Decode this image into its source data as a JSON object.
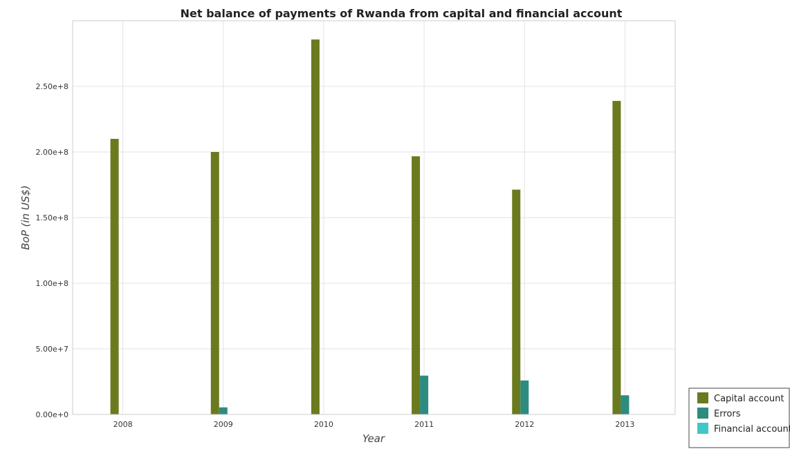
{
  "chart_data": {
    "type": "bar",
    "title": "Net balance of payments of Rwanda from capital and financial account",
    "xlabel": "Year",
    "ylabel": "BoP (in US$)",
    "categories": [
      "2008",
      "2009",
      "2010",
      "2011",
      "2012",
      "2013"
    ],
    "ylim": [
      0,
      300000000
    ],
    "yticks": [
      0,
      50000000,
      100000000,
      150000000,
      200000000,
      250000000
    ],
    "ytick_labels": [
      "0.00e+0",
      "5.00e+7",
      "1.00e+8",
      "1.50e+8",
      "2.00e+8",
      "2.50e+8"
    ],
    "grid": true,
    "legend_position": "bottom-right",
    "series": [
      {
        "name": "Capital account",
        "color": "#6b7a1f",
        "values": [
          210000000,
          200000000,
          285700000,
          196700000,
          171300000,
          238900000
        ]
      },
      {
        "name": "Errors",
        "color": "#2e8b7f",
        "values": [
          0,
          5400000,
          0,
          29600000,
          25900000,
          14600000
        ]
      },
      {
        "name": "Financial account",
        "color": "#40c8c8",
        "values": [
          0,
          0,
          0,
          0,
          0,
          0
        ]
      }
    ]
  }
}
